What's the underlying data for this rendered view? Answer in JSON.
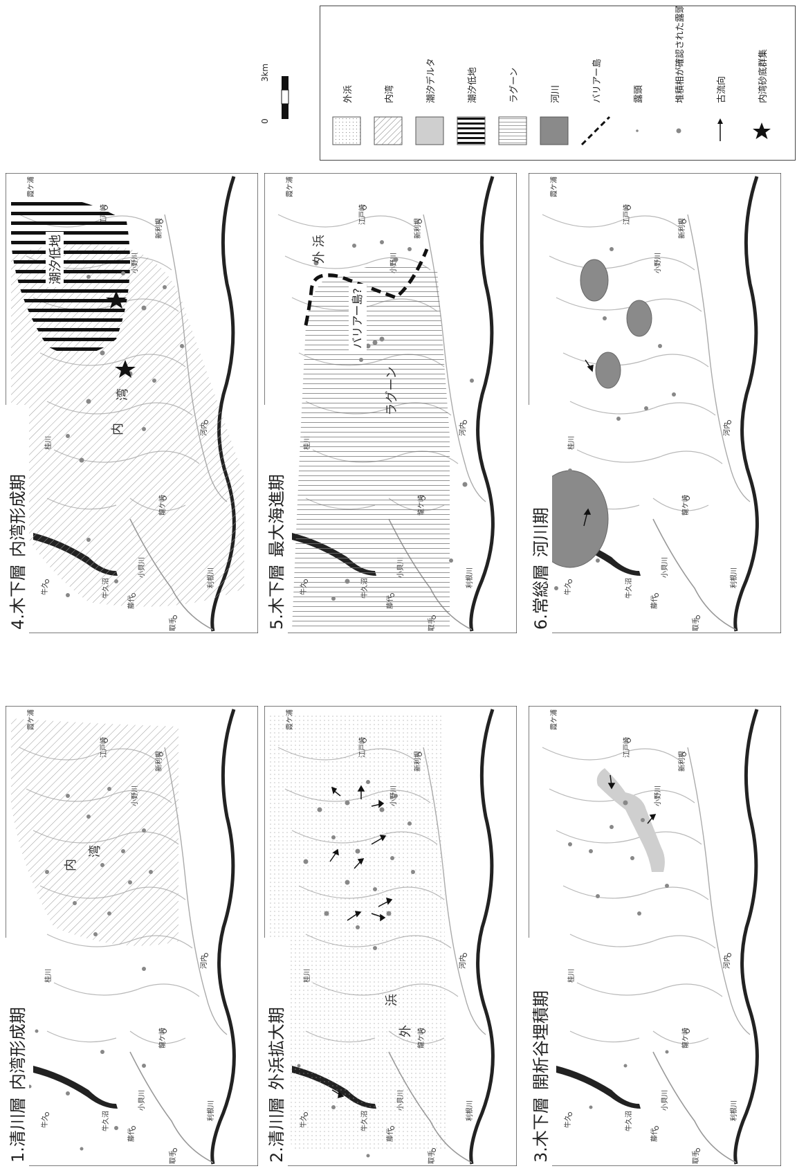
{
  "panels": [
    {
      "number": "1.",
      "formation": "清川層",
      "stage": "内湾形成期",
      "labels": {
        "bay_nai": "内",
        "bay_wan": "湾"
      }
    },
    {
      "number": "2.",
      "formation": "清川層",
      "stage": "外浜拡大期",
      "labels": {
        "shore_gai": "外",
        "shore_hama": "浜"
      }
    },
    {
      "number": "3.",
      "formation": "木下層",
      "stage": "開析谷埋積期"
    },
    {
      "number": "4.",
      "formation": "木下層",
      "stage": "内湾形成期",
      "labels": {
        "bay_nai": "内",
        "bay_wan": "湾",
        "tidal_flat": "潮汐低地"
      }
    },
    {
      "number": "5.",
      "formation": "木下層",
      "stage": "最大海進期",
      "labels": {
        "shore": "外 浜",
        "barrier": "バリアー島?",
        "lagoon": "ラグーン"
      }
    },
    {
      "number": "6.",
      "formation": "常総層",
      "stage": "河川期"
    }
  ],
  "place_names": {
    "toride": "取手",
    "ushiku": "牛久",
    "ushikunuma": "牛久沼",
    "kokaigawa": "小貝川",
    "fujishiro": "藤代",
    "tonegawa": "利根川",
    "ryugasaki": "龍ケ崎",
    "katsuragawa": "桂川",
    "onogawa": "小野川",
    "edosaki": "江戸崎",
    "shintone": "新利根",
    "kawachi": "河内",
    "kasumigaura": "霞ケ浦"
  },
  "legend": {
    "items": [
      {
        "label": "外浜",
        "swatch": "dots"
      },
      {
        "label": "内湾",
        "swatch": "diagonal"
      },
      {
        "label": "潮汐デルタ",
        "swatch": "light-gray"
      },
      {
        "label": "潮汐低地",
        "swatch": "thick-vertical"
      },
      {
        "label": "ラグーン",
        "swatch": "thin-vertical"
      },
      {
        "label": "河川",
        "swatch": "dark-gray"
      },
      {
        "label": "バリアー島",
        "swatch": "dashed-line"
      },
      {
        "label": "露頭",
        "swatch": "small-dot"
      },
      {
        "label": "堆積相が確認された露頭",
        "swatch": "big-dot"
      },
      {
        "label": "古流向",
        "swatch": "arrow"
      },
      {
        "label": "内湾砂底群集",
        "swatch": "star"
      }
    ]
  },
  "scale": {
    "zero": "0",
    "distance": "3km"
  },
  "colors": {
    "river_channel": "#222222",
    "streams": "#b8b8b8",
    "outcrop": "#888888",
    "tidal_delta": "#cfcfcf",
    "river_facies": "#8a8a8a"
  }
}
